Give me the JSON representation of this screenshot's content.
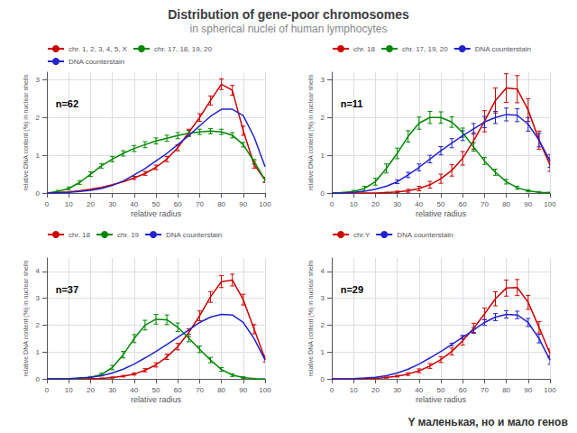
{
  "title": "Distribution of gene-poor chromosomes",
  "subtitle": "in spherical nuclei of human lymphocytes",
  "annotations": [
    "Y маленькая, но и мало генов"
  ],
  "chart_data": [
    {
      "type": "line",
      "annotations": [
        "n=62"
      ],
      "xlabel": "relative radius",
      "ylabel": "relative DNA content (%) in nuclear shells",
      "x": [
        0,
        5,
        10,
        15,
        20,
        25,
        30,
        35,
        40,
        45,
        50,
        55,
        60,
        65,
        70,
        75,
        80,
        85,
        90,
        95,
        100
      ],
      "xlim": [
        0,
        100
      ],
      "xticks": [
        0,
        10,
        20,
        30,
        40,
        50,
        60,
        70,
        80,
        90,
        100
      ],
      "ylim": [
        0,
        3.2
      ],
      "yticks": [
        0,
        1,
        2,
        3
      ],
      "grid": true,
      "legend": "upper left",
      "series": [
        {
          "name": "chr. 1, 2, 3, 4, 5, X",
          "color": "#cc0000",
          "values": [
            0,
            0.01,
            0.03,
            0.06,
            0.1,
            0.15,
            0.22,
            0.3,
            0.4,
            0.52,
            0.68,
            0.9,
            1.2,
            1.6,
            2.0,
            2.45,
            2.88,
            2.72,
            1.65,
            0.75,
            0.35
          ],
          "error": [
            0,
            0,
            0,
            0,
            0,
            0,
            0,
            0,
            0.04,
            0.05,
            0.06,
            0.07,
            0.08,
            0.09,
            0.1,
            0.12,
            0.14,
            0.13,
            0.12,
            0.09,
            0.07
          ]
        },
        {
          "name": "chr. 17, 18, 19, 20",
          "color": "#008800",
          "values": [
            0,
            0.04,
            0.12,
            0.28,
            0.5,
            0.72,
            0.9,
            1.05,
            1.18,
            1.28,
            1.38,
            1.45,
            1.52,
            1.58,
            1.62,
            1.64,
            1.62,
            1.53,
            1.28,
            0.83,
            0.35
          ],
          "error": [
            0,
            0.03,
            0.04,
            0.05,
            0.06,
            0.06,
            0.07,
            0.07,
            0.08,
            0.08,
            0.08,
            0.08,
            0.08,
            0.08,
            0.07,
            0.07,
            0.07,
            0.07,
            0.06,
            0.06,
            0.05
          ]
        },
        {
          "name": "DNA counterstain",
          "color": "#2222cc",
          "values": [
            0,
            0.01,
            0.02,
            0.04,
            0.07,
            0.12,
            0.2,
            0.32,
            0.48,
            0.65,
            0.85,
            1.05,
            1.28,
            1.52,
            1.78,
            2.03,
            2.22,
            2.22,
            2.05,
            1.48,
            0.7
          ]
        }
      ]
    },
    {
      "type": "line",
      "annotations": [
        "n=11"
      ],
      "xlabel": "relative radius",
      "ylabel": "relative DNA content (%) in nuclear shells",
      "x": [
        0,
        5,
        10,
        15,
        20,
        25,
        30,
        35,
        40,
        45,
        50,
        55,
        60,
        65,
        70,
        75,
        80,
        85,
        90,
        95,
        100
      ],
      "xlim": [
        0,
        100
      ],
      "xticks": [
        0,
        10,
        20,
        30,
        40,
        50,
        60,
        70,
        80,
        90,
        100
      ],
      "ylim": [
        0,
        3.2
      ],
      "yticks": [
        0,
        1,
        2,
        3
      ],
      "grid": true,
      "legend": "upper left",
      "series": [
        {
          "name": "chr. 18",
          "color": "#cc0000",
          "values": [
            0,
            0.0,
            0.0,
            0.0,
            0.0,
            0.01,
            0.03,
            0.06,
            0.12,
            0.22,
            0.38,
            0.6,
            0.92,
            1.38,
            1.9,
            2.45,
            2.78,
            2.75,
            2.2,
            1.4,
            0.75
          ],
          "error": [
            0,
            0,
            0,
            0,
            0,
            0.01,
            0.02,
            0.04,
            0.06,
            0.09,
            0.12,
            0.15,
            0.18,
            0.22,
            0.28,
            0.33,
            0.38,
            0.36,
            0.3,
            0.24,
            0.18
          ]
        },
        {
          "name": "chr. 17, 19, 20",
          "color": "#008800",
          "values": [
            0,
            0.01,
            0.04,
            0.12,
            0.3,
            0.65,
            1.05,
            1.5,
            1.85,
            2.0,
            2.0,
            1.88,
            1.6,
            1.22,
            0.85,
            0.55,
            0.3,
            0.14,
            0.06,
            0.02,
            0.01
          ],
          "error": [
            0,
            0.01,
            0.03,
            0.06,
            0.09,
            0.12,
            0.14,
            0.15,
            0.16,
            0.16,
            0.15,
            0.14,
            0.12,
            0.11,
            0.09,
            0.08,
            0.06,
            0.04,
            0.03,
            0.02,
            0.01
          ]
        },
        {
          "name": "DNA counterstain",
          "color": "#2222cc",
          "values": [
            0,
            0.0,
            0.02,
            0.05,
            0.1,
            0.18,
            0.3,
            0.48,
            0.68,
            0.9,
            1.12,
            1.32,
            1.52,
            1.7,
            1.88,
            2.0,
            2.08,
            2.06,
            1.82,
            1.4,
            0.85
          ],
          "error": [
            0,
            0,
            0,
            0,
            0,
            0,
            0.05,
            0.07,
            0.09,
            0.1,
            0.11,
            0.12,
            0.13,
            0.14,
            0.15,
            0.16,
            0.17,
            0.17,
            0.18,
            0.18,
            0.17
          ]
        }
      ]
    },
    {
      "type": "line",
      "annotations": [
        "n=37"
      ],
      "xlabel": "relative radius",
      "ylabel": "relative DNA content (%) in nuclear shells",
      "x": [
        0,
        5,
        10,
        15,
        20,
        25,
        30,
        35,
        40,
        45,
        50,
        55,
        60,
        65,
        70,
        75,
        80,
        85,
        90,
        95,
        100
      ],
      "xlim": [
        0,
        100
      ],
      "xticks": [
        0,
        10,
        20,
        30,
        40,
        50,
        60,
        70,
        80,
        90,
        100
      ],
      "ylim": [
        0,
        4.5
      ],
      "yticks": [
        0,
        1,
        2,
        3,
        4
      ],
      "grid": true,
      "legend": "upper left",
      "series": [
        {
          "name": "chr. 18",
          "color": "#cc0000",
          "values": [
            0,
            0.0,
            0.0,
            0.0,
            0.01,
            0.02,
            0.05,
            0.1,
            0.18,
            0.32,
            0.52,
            0.82,
            1.2,
            1.72,
            2.35,
            3.05,
            3.62,
            3.68,
            2.95,
            1.85,
            0.75
          ],
          "error": [
            0,
            0,
            0,
            0,
            0.01,
            0.01,
            0.02,
            0.03,
            0.04,
            0.06,
            0.08,
            0.1,
            0.12,
            0.15,
            0.18,
            0.2,
            0.22,
            0.22,
            0.2,
            0.17,
            0.12
          ]
        },
        {
          "name": "chr. 19",
          "color": "#008800",
          "values": [
            0,
            0.0,
            0.0,
            0.02,
            0.06,
            0.16,
            0.42,
            0.9,
            1.5,
            2.0,
            2.22,
            2.2,
            1.92,
            1.52,
            1.1,
            0.7,
            0.35,
            0.14,
            0.05,
            0.01,
            0.0
          ],
          "error": [
            0,
            0,
            0,
            0.02,
            0.03,
            0.05,
            0.08,
            0.12,
            0.15,
            0.18,
            0.18,
            0.18,
            0.16,
            0.14,
            0.12,
            0.1,
            0.07,
            0.05,
            0.03,
            0.01,
            0
          ]
        },
        {
          "name": "DNA counterstain",
          "color": "#2222cc",
          "values": [
            0,
            0.0,
            0.01,
            0.03,
            0.06,
            0.12,
            0.22,
            0.36,
            0.55,
            0.78,
            1.02,
            1.28,
            1.55,
            1.82,
            2.1,
            2.3,
            2.4,
            2.38,
            2.1,
            1.5,
            0.7
          ]
        }
      ]
    },
    {
      "type": "line",
      "annotations": [
        "n=29"
      ],
      "xlabel": "relative radius",
      "ylabel": "relative DNA content (%) in nuclear shells",
      "x": [
        0,
        5,
        10,
        15,
        20,
        25,
        30,
        35,
        40,
        45,
        50,
        55,
        60,
        65,
        70,
        75,
        80,
        85,
        90,
        95,
        100
      ],
      "xlim": [
        0,
        100
      ],
      "xticks": [
        0,
        10,
        20,
        30,
        40,
        50,
        60,
        70,
        80,
        90,
        100
      ],
      "ylim": [
        0,
        4.5
      ],
      "yticks": [
        0,
        1,
        2,
        3,
        4
      ],
      "grid": true,
      "legend": "upper left",
      "series": [
        {
          "name": "chr.Y",
          "color": "#cc0000",
          "values": [
            0,
            0.0,
            0.0,
            0.01,
            0.02,
            0.05,
            0.1,
            0.18,
            0.3,
            0.48,
            0.72,
            1.02,
            1.42,
            1.88,
            2.42,
            2.98,
            3.38,
            3.4,
            2.85,
            1.92,
            0.95
          ],
          "error": [
            0,
            0,
            0,
            0.01,
            0.01,
            0.02,
            0.03,
            0.05,
            0.07,
            0.09,
            0.11,
            0.13,
            0.16,
            0.19,
            0.22,
            0.26,
            0.3,
            0.3,
            0.26,
            0.21,
            0.16
          ]
        },
        {
          "name": "DNA counterstain",
          "color": "#2222cc",
          "values": [
            0,
            0.0,
            0.01,
            0.03,
            0.06,
            0.12,
            0.22,
            0.36,
            0.55,
            0.78,
            1.02,
            1.28,
            1.55,
            1.82,
            2.1,
            2.3,
            2.4,
            2.38,
            2.1,
            1.5,
            0.7
          ],
          "error": [
            0,
            0,
            0,
            0,
            0,
            0,
            0,
            0,
            0,
            0,
            0,
            0.05,
            0.07,
            0.09,
            0.11,
            0.13,
            0.14,
            0.14,
            0.15,
            0.16,
            0.16
          ]
        }
      ]
    }
  ]
}
